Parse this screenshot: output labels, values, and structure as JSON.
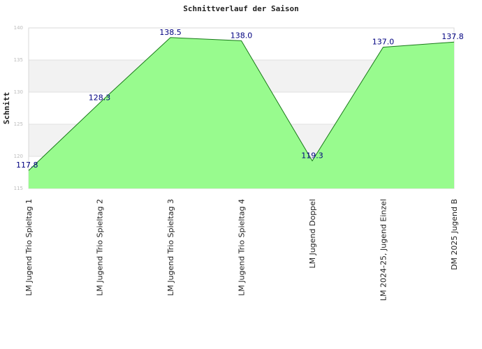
{
  "chart_data": {
    "type": "area",
    "title": "Schnittverlauf der Saison",
    "xlabel": "",
    "ylabel": "Schnitt",
    "ylim": [
      115,
      140
    ],
    "yticks": [
      115,
      120,
      125,
      130,
      135,
      140
    ],
    "categories": [
      "LM Jugend Trio Spieltag 1",
      "LM Jugend Trio Spieltag 2",
      "LM Jugend Trio Spieltag 3",
      "LM Jugend Trio Spieltag 4",
      "LM Jugend Doppel",
      "LM 2024-25, Jugend Einzel",
      "DM 2025 Jugend B"
    ],
    "series": [
      {
        "values": [
          117.8,
          128.3,
          138.5,
          138.0,
          119.3,
          137.0,
          137.8
        ],
        "labels": [
          "117.8",
          "128.3",
          "138.5",
          "138.0",
          "119.3",
          "137.0",
          "137.8"
        ]
      }
    ],
    "colors": {
      "fill": "#98fb8e",
      "line": "#1a7a1a",
      "band": "#f2f2f2",
      "grid": "#e0e0e0",
      "label": "#000080"
    },
    "grid": true,
    "legend": "none"
  }
}
